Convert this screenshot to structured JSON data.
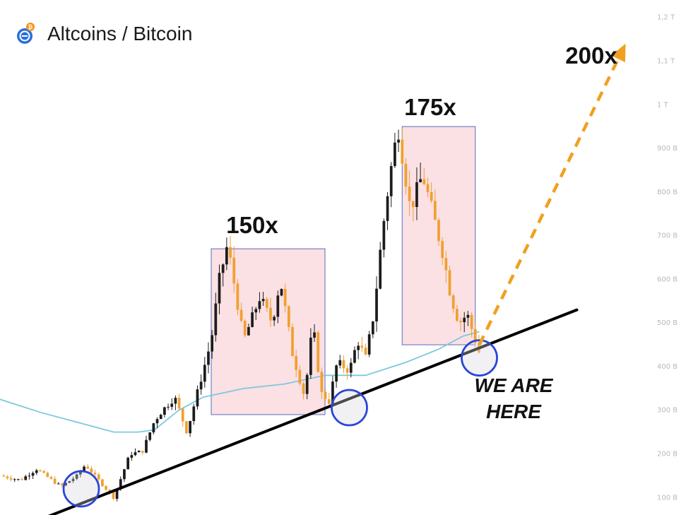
{
  "header": {
    "title": "Altcoins / Bitcoin"
  },
  "annotations": {
    "cycle1": "150x",
    "cycle2": "175x",
    "target": "200x",
    "here_line1": "WE ARE",
    "here_line2": "HERE"
  },
  "colors": {
    "bull": "#1c1c1c",
    "bear": "#f0a030",
    "box_fill": "#fbe0e4",
    "box_stroke": "#5b6bc0",
    "ma": "#7cc9dc",
    "trendline": "#000000",
    "arrow": "#f0a020",
    "circle": "#2a45d8",
    "logo_outer": "#2a6fdb",
    "logo_badge": "#f7931a"
  },
  "chart_data": {
    "type": "candlestick",
    "y_scale": "linear",
    "y_ticks": [
      "100 B",
      "200 B",
      "300 B",
      "400 B",
      "500 B",
      "600 B",
      "700 B",
      "800 B",
      "900 B",
      "1 T",
      "1,1 T",
      "1,2 T"
    ],
    "y_tick_values": [
      100,
      200,
      300,
      400,
      500,
      600,
      700,
      800,
      900,
      1000,
      1100,
      1200
    ],
    "ylim": [
      60,
      1240
    ],
    "price_path": [
      [
        0,
        150
      ],
      [
        5,
        140
      ],
      [
        9,
        165
      ],
      [
        15,
        125
      ],
      [
        19,
        150
      ],
      [
        21,
        175
      ],
      [
        28,
        100
      ],
      [
        32,
        200
      ],
      [
        35,
        205
      ],
      [
        38,
        275
      ],
      [
        40,
        300
      ],
      [
        43,
        330
      ],
      [
        46,
        250
      ],
      [
        50,
        390
      ],
      [
        52,
        460
      ],
      [
        54,
        600
      ],
      [
        56,
        680
      ],
      [
        60,
        460
      ],
      [
        64,
        560
      ],
      [
        67,
        500
      ],
      [
        69,
        600
      ],
      [
        72,
        430
      ],
      [
        75,
        330
      ],
      [
        77,
        500
      ],
      [
        79,
        340
      ],
      [
        81,
        320
      ],
      [
        83,
        410
      ],
      [
        86,
        390
      ],
      [
        88,
        460
      ],
      [
        90,
        420
      ],
      [
        92,
        520
      ],
      [
        94,
        700
      ],
      [
        96,
        840
      ],
      [
        98,
        950
      ],
      [
        101,
        760
      ],
      [
        104,
        840
      ],
      [
        106,
        770
      ],
      [
        109,
        660
      ],
      [
        111,
        560
      ],
      [
        113,
        500
      ],
      [
        115,
        520
      ],
      [
        117,
        460
      ],
      [
        118,
        430
      ]
    ],
    "moving_average": [
      [
        0,
        325
      ],
      [
        10,
        295
      ],
      [
        20,
        270
      ],
      [
        28,
        250
      ],
      [
        34,
        250
      ],
      [
        38,
        255
      ],
      [
        44,
        300
      ],
      [
        50,
        330
      ],
      [
        60,
        350
      ],
      [
        70,
        360
      ],
      [
        80,
        380
      ],
      [
        90,
        380
      ],
      [
        100,
        410
      ],
      [
        108,
        440
      ],
      [
        114,
        470
      ],
      [
        118,
        480
      ]
    ],
    "boxes": [
      {
        "start": 52,
        "end": 80,
        "low": 290,
        "high": 670
      },
      {
        "start": 99,
        "end": 117,
        "low": 450,
        "high": 950
      }
    ],
    "trendline": [
      [
        10,
        50
      ],
      [
        142,
        530
      ]
    ],
    "touch_points": [
      [
        20,
        120
      ],
      [
        86,
        306
      ],
      [
        118,
        420
      ]
    ],
    "projection": [
      [
        118,
        450
      ],
      [
        154,
        1140
      ]
    ]
  }
}
